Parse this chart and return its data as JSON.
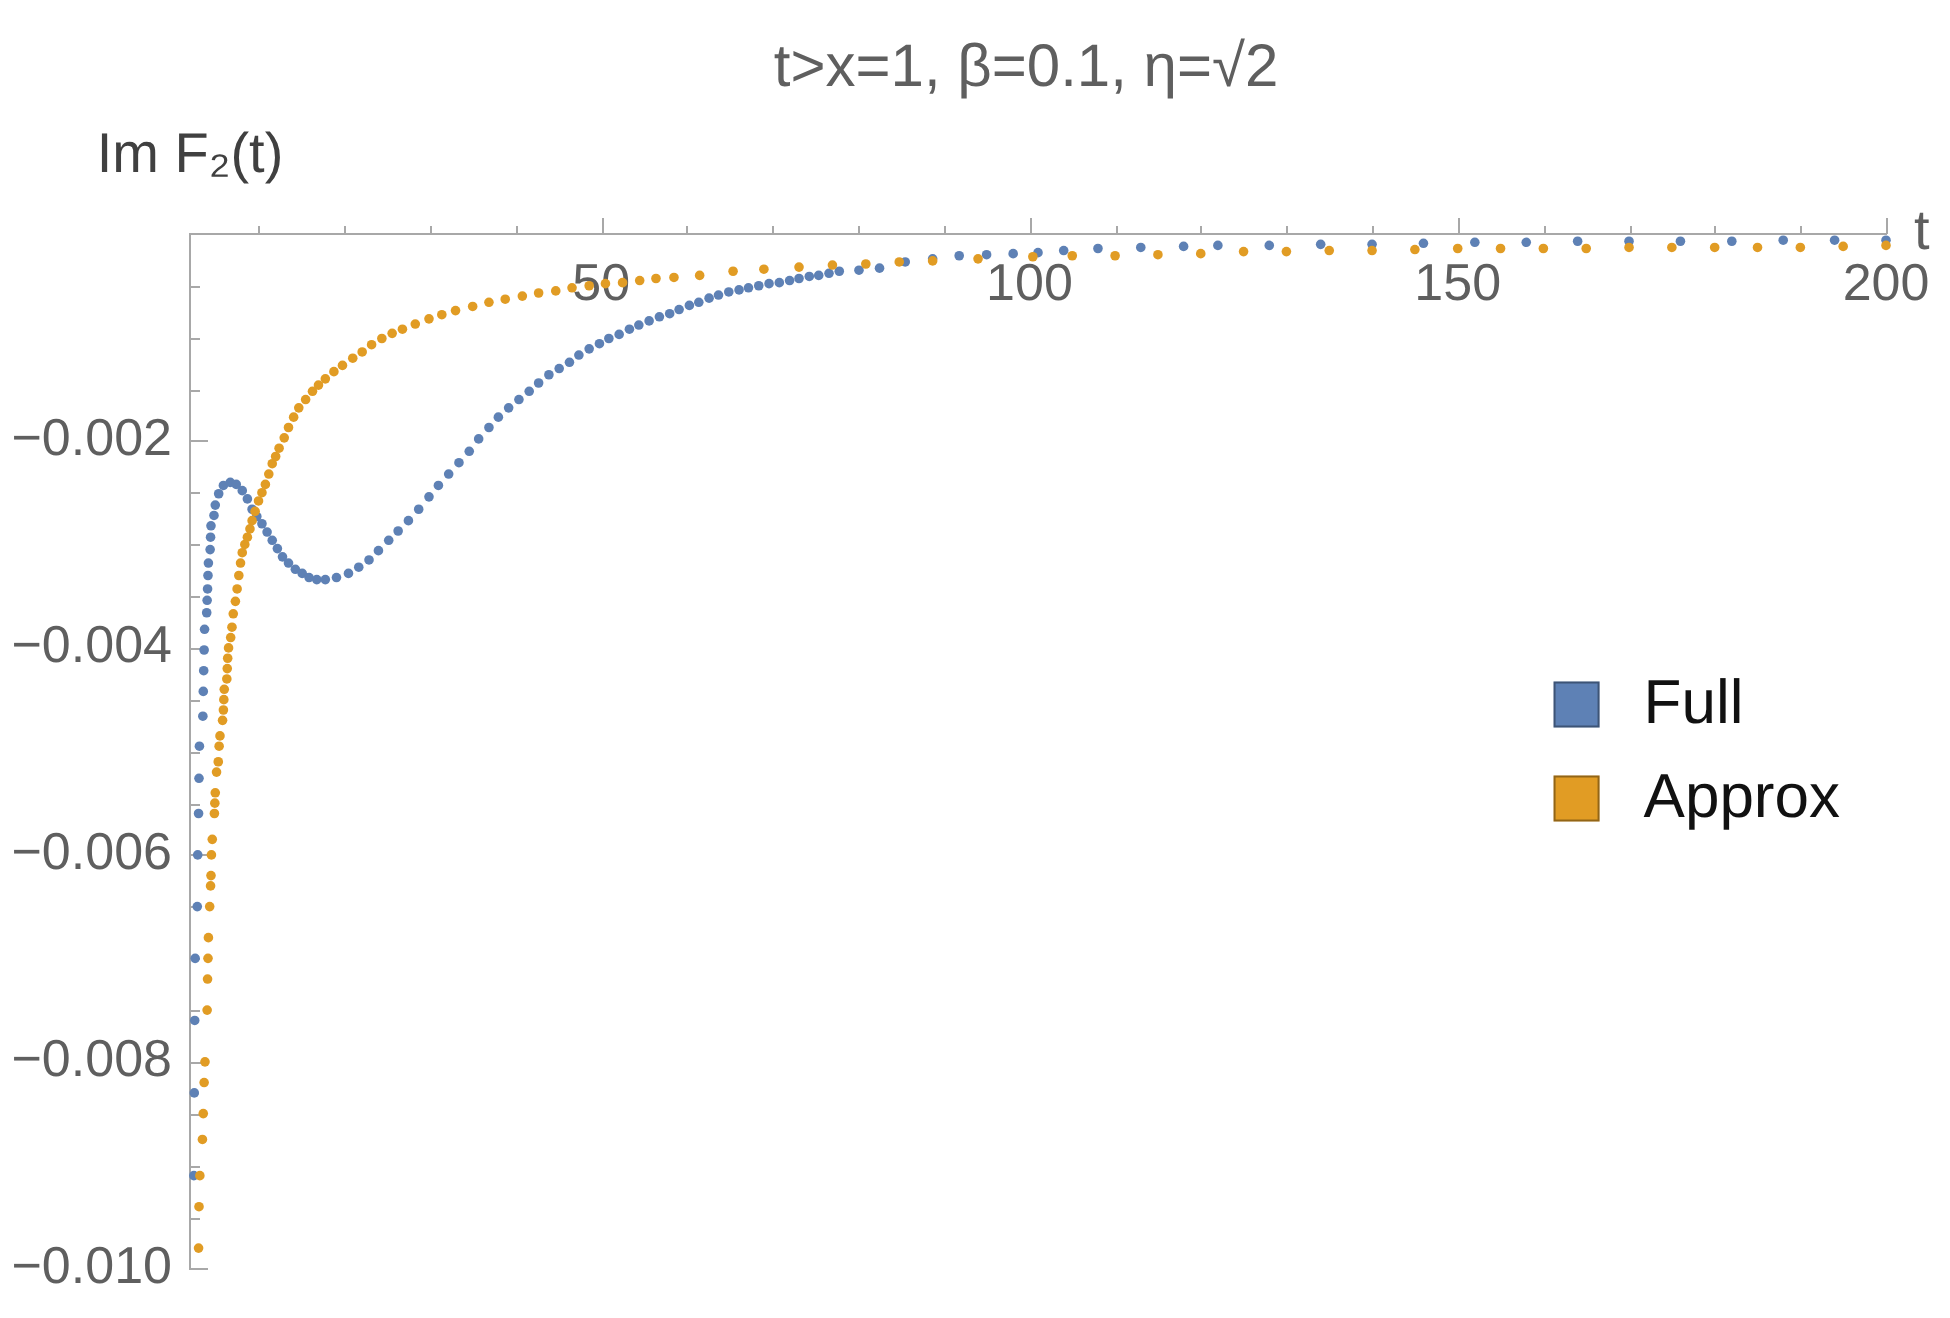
{
  "chart_data": {
    "type": "scatter",
    "title": "t>x=1, β=0.1, η=√2",
    "xlabel": "t",
    "ylabel": "Im F₂(t)",
    "series": [
      {
        "name": "Full",
        "color": "#5e81b5",
        "x": [
          2.45,
          2.5,
          2.55,
          2.6,
          2.85,
          2.9,
          3.0,
          3.05,
          3.1,
          3.5,
          3.55,
          3.6,
          3.65,
          3.7,
          3.95,
          4.0,
          4.05,
          4.1,
          4.15,
          4.35,
          4.4,
          4.45,
          4.8,
          4.95,
          5.35,
          5.9,
          6.7,
          7.4,
          8.1,
          8.7,
          9.25,
          9.8,
          10.4,
          11.0,
          11.6,
          12.2,
          12.8,
          13.5,
          14.3,
          15.1,
          15.9,
          16.8,
          17.8,
          19.1,
          20.5,
          21.7,
          22.9,
          24.0,
          25.2,
          26.3,
          27.5,
          28.7,
          29.9,
          31.0,
          32.2,
          33.4,
          34.6,
          35.7,
          36.9,
          38.0,
          39.2,
          40.4,
          41.6,
          42.7,
          43.9,
          45.1,
          46.3,
          47.4,
          48.6,
          49.8,
          50.9,
          52.1,
          53.3,
          54.4,
          55.6,
          56.8,
          58.0,
          59.1,
          60.3,
          61.4,
          62.6,
          63.7,
          64.9,
          66.1,
          67.2,
          68.4,
          69.6,
          70.8,
          72.0,
          73.1,
          74.3,
          75.4,
          76.6,
          77.8,
          80.1,
          82.5,
          85.5,
          88.7,
          91.8,
          95.0,
          98.1,
          101,
          104,
          108,
          113,
          118,
          122,
          128,
          134,
          140,
          146,
          152,
          158,
          164,
          170,
          176,
          182,
          188,
          194,
          200
        ],
        "values": [
          -0.0091,
          -0.0083,
          -0.0076,
          -0.007,
          -0.0065,
          -0.006,
          -0.0056,
          -0.00526,
          -0.00495,
          -0.00466,
          -0.00442,
          -0.00422,
          -0.00402,
          -0.00382,
          -0.00366,
          -0.00354,
          -0.00343,
          -0.0033,
          -0.00318,
          -0.00305,
          -0.00293,
          -0.00282,
          -0.00272,
          -0.00262,
          -0.00251,
          -0.00243,
          -0.0024,
          -0.00242,
          -0.00248,
          -0.00256,
          -0.00266,
          -0.00273,
          -0.0028,
          -0.00288,
          -0.00296,
          -0.00304,
          -0.00312,
          -0.00318,
          -0.00324,
          -0.00328,
          -0.00332,
          -0.00334,
          -0.00334,
          -0.00332,
          -0.00328,
          -0.00322,
          -0.00315,
          -0.00306,
          -0.00296,
          -0.00287,
          -0.00277,
          -0.00266,
          -0.00254,
          -0.00243,
          -0.00232,
          -0.00221,
          -0.0021,
          -0.00198,
          -0.00187,
          -0.00177,
          -0.00168,
          -0.0016,
          -0.00152,
          -0.00144,
          -0.00136,
          -0.0013,
          -0.00124,
          -0.00117,
          -0.00111,
          -0.00106,
          -0.00101,
          -0.00097,
          -0.00092,
          -0.00088,
          -0.00084,
          -0.0008,
          -0.00077,
          -0.00073,
          -0.00069,
          -0.00066,
          -0.00062,
          -0.00059,
          -0.00056,
          -0.00054,
          -0.00052,
          -0.0005,
          -0.00048,
          -0.00047,
          -0.00045,
          -0.00043,
          -0.00041,
          -0.0004,
          -0.00038,
          -0.00036,
          -0.00035,
          -0.00033,
          -0.00027,
          -0.00024,
          -0.00021,
          -0.0002,
          -0.00019,
          -0.00018,
          -0.00016,
          -0.00014,
          -0.00013,
          -0.00012,
          -0.00011,
          -0.00011,
          -0.0001,
          -0.0001,
          -9e-05,
          -8e-05,
          -8e-05,
          -7e-05,
          -7e-05,
          -7e-05,
          -7e-05,
          -6e-05,
          -6e-05,
          -6e-05
        ]
      },
      {
        "name": "Approx",
        "color": "#e19c24",
        "x": [
          3.0,
          3.05,
          3.15,
          3.45,
          3.55,
          3.65,
          3.75,
          4.0,
          4.05,
          4.1,
          4.15,
          4.3,
          4.4,
          4.45,
          4.5,
          4.6,
          4.85,
          4.9,
          4.95,
          5.1,
          5.3,
          5.4,
          5.5,
          5.8,
          5.9,
          5.95,
          6.0,
          6.3,
          6.35,
          6.4,
          6.5,
          6.75,
          6.9,
          7.05,
          7.3,
          7.5,
          7.7,
          7.9,
          8.1,
          8.4,
          8.7,
          9.0,
          9.25,
          9.6,
          10.0,
          10.4,
          10.8,
          11.2,
          11.6,
          12.0,
          12.4,
          13.0,
          13.5,
          14.1,
          14.7,
          15.5,
          16.3,
          17.0,
          17.8,
          18.8,
          19.8,
          21.0,
          22.1,
          23.2,
          24.4,
          25.6,
          26.8,
          28.3,
          29.9,
          31.4,
          33.0,
          35.0,
          36.9,
          38.8,
          40.8,
          42.7,
          44.7,
          46.6,
          48.6,
          50.5,
          52.5,
          54.5,
          56.4,
          58.5,
          61.5,
          65.4,
          69.0,
          73.1,
          77.0,
          80.9,
          84.8,
          88.7,
          94.0,
          100.4,
          105,
          110,
          115,
          120,
          125,
          130,
          135,
          140,
          145,
          150,
          155,
          160,
          165,
          170,
          175,
          180,
          185,
          190,
          195,
          200
        ],
        "values": [
          -0.0098,
          -0.0094,
          -0.0091,
          -0.00875,
          -0.0085,
          -0.0082,
          -0.008,
          -0.0075,
          -0.0072,
          -0.007,
          -0.0068,
          -0.0065,
          -0.0063,
          -0.0062,
          -0.006,
          -0.00585,
          -0.0056,
          -0.0055,
          -0.0054,
          -0.0052,
          -0.0051,
          -0.00495,
          -0.00485,
          -0.0047,
          -0.0046,
          -0.0045,
          -0.0044,
          -0.0043,
          -0.0042,
          -0.0041,
          -0.004,
          -0.0039,
          -0.0038,
          -0.00367,
          -0.00355,
          -0.00343,
          -0.0033,
          -0.00318,
          -0.00308,
          -0.003,
          -0.00293,
          -0.00285,
          -0.00277,
          -0.00268,
          -0.00258,
          -0.0025,
          -0.00242,
          -0.00232,
          -0.00222,
          -0.00215,
          -0.00207,
          -0.00197,
          -0.00187,
          -0.00177,
          -0.00168,
          -0.0016,
          -0.00152,
          -0.00146,
          -0.0014,
          -0.00133,
          -0.00127,
          -0.0012,
          -0.00114,
          -0.00107,
          -0.00101,
          -0.00096,
          -0.00092,
          -0.00087,
          -0.00082,
          -0.00078,
          -0.00074,
          -0.0007,
          -0.00066,
          -0.00063,
          -0.0006,
          -0.00057,
          -0.00055,
          -0.00052,
          -0.0005,
          -0.00048,
          -0.00047,
          -0.00045,
          -0.00043,
          -0.00042,
          -0.0004,
          -0.00036,
          -0.00034,
          -0.00032,
          -0.0003,
          -0.00029,
          -0.00027,
          -0.00026,
          -0.00024,
          -0.00022,
          -0.00021,
          -0.00021,
          -0.0002,
          -0.00019,
          -0.00017,
          -0.00017,
          -0.00016,
          -0.00016,
          -0.00015,
          -0.00014,
          -0.00014,
          -0.00014,
          -0.00014,
          -0.00013,
          -0.00013,
          -0.00013,
          -0.00013,
          -0.00013,
          -0.00012,
          -0.00011
        ]
      }
    ],
    "xlim": [
      2,
      200
    ],
    "ylim": [
      -0.01,
      0
    ],
    "xticks": [
      {
        "value": 10,
        "label": null
      },
      {
        "value": 20,
        "label": null
      },
      {
        "value": 30,
        "label": null
      },
      {
        "value": 40,
        "label": null
      },
      50,
      {
        "value": 60,
        "label": null
      },
      {
        "value": 70,
        "label": null
      },
      {
        "value": 80,
        "label": null
      },
      {
        "value": 90,
        "label": null
      },
      100,
      {
        "value": 110,
        "label": null
      },
      {
        "value": 120,
        "label": null
      },
      {
        "value": 130,
        "label": null
      },
      {
        "value": 140,
        "label": null
      },
      150,
      {
        "value": 160,
        "label": null
      },
      {
        "value": 170,
        "label": null
      },
      {
        "value": 180,
        "label": null
      },
      {
        "value": 190,
        "label": null
      },
      200
    ],
    "yticks": [
      {
        "value": -0.0005,
        "label": null
      },
      {
        "value": -0.001,
        "label": null
      },
      {
        "value": -0.0015,
        "label": null
      },
      {
        "value": -0.002,
        "label": "−0.002"
      },
      {
        "value": -0.0025,
        "label": null
      },
      {
        "value": -0.003,
        "label": null
      },
      {
        "value": -0.0035,
        "label": null
      },
      {
        "value": -0.004,
        "label": "−0.004"
      },
      {
        "value": -0.0045,
        "label": null
      },
      {
        "value": -0.005,
        "label": null
      },
      {
        "value": -0.0055,
        "label": null
      },
      {
        "value": -0.006,
        "label": "−0.006"
      },
      {
        "value": -0.0065,
        "label": null
      },
      {
        "value": -0.007,
        "label": null
      },
      {
        "value": -0.0075,
        "label": null
      },
      {
        "value": -0.008,
        "label": "−0.008"
      },
      {
        "value": -0.0085,
        "label": null
      },
      {
        "value": -0.009,
        "label": null
      },
      {
        "value": -0.0095,
        "label": null
      },
      {
        "value": -0.01,
        "label": "−0.010"
      }
    ],
    "legend": "right",
    "marker": "circle"
  }
}
